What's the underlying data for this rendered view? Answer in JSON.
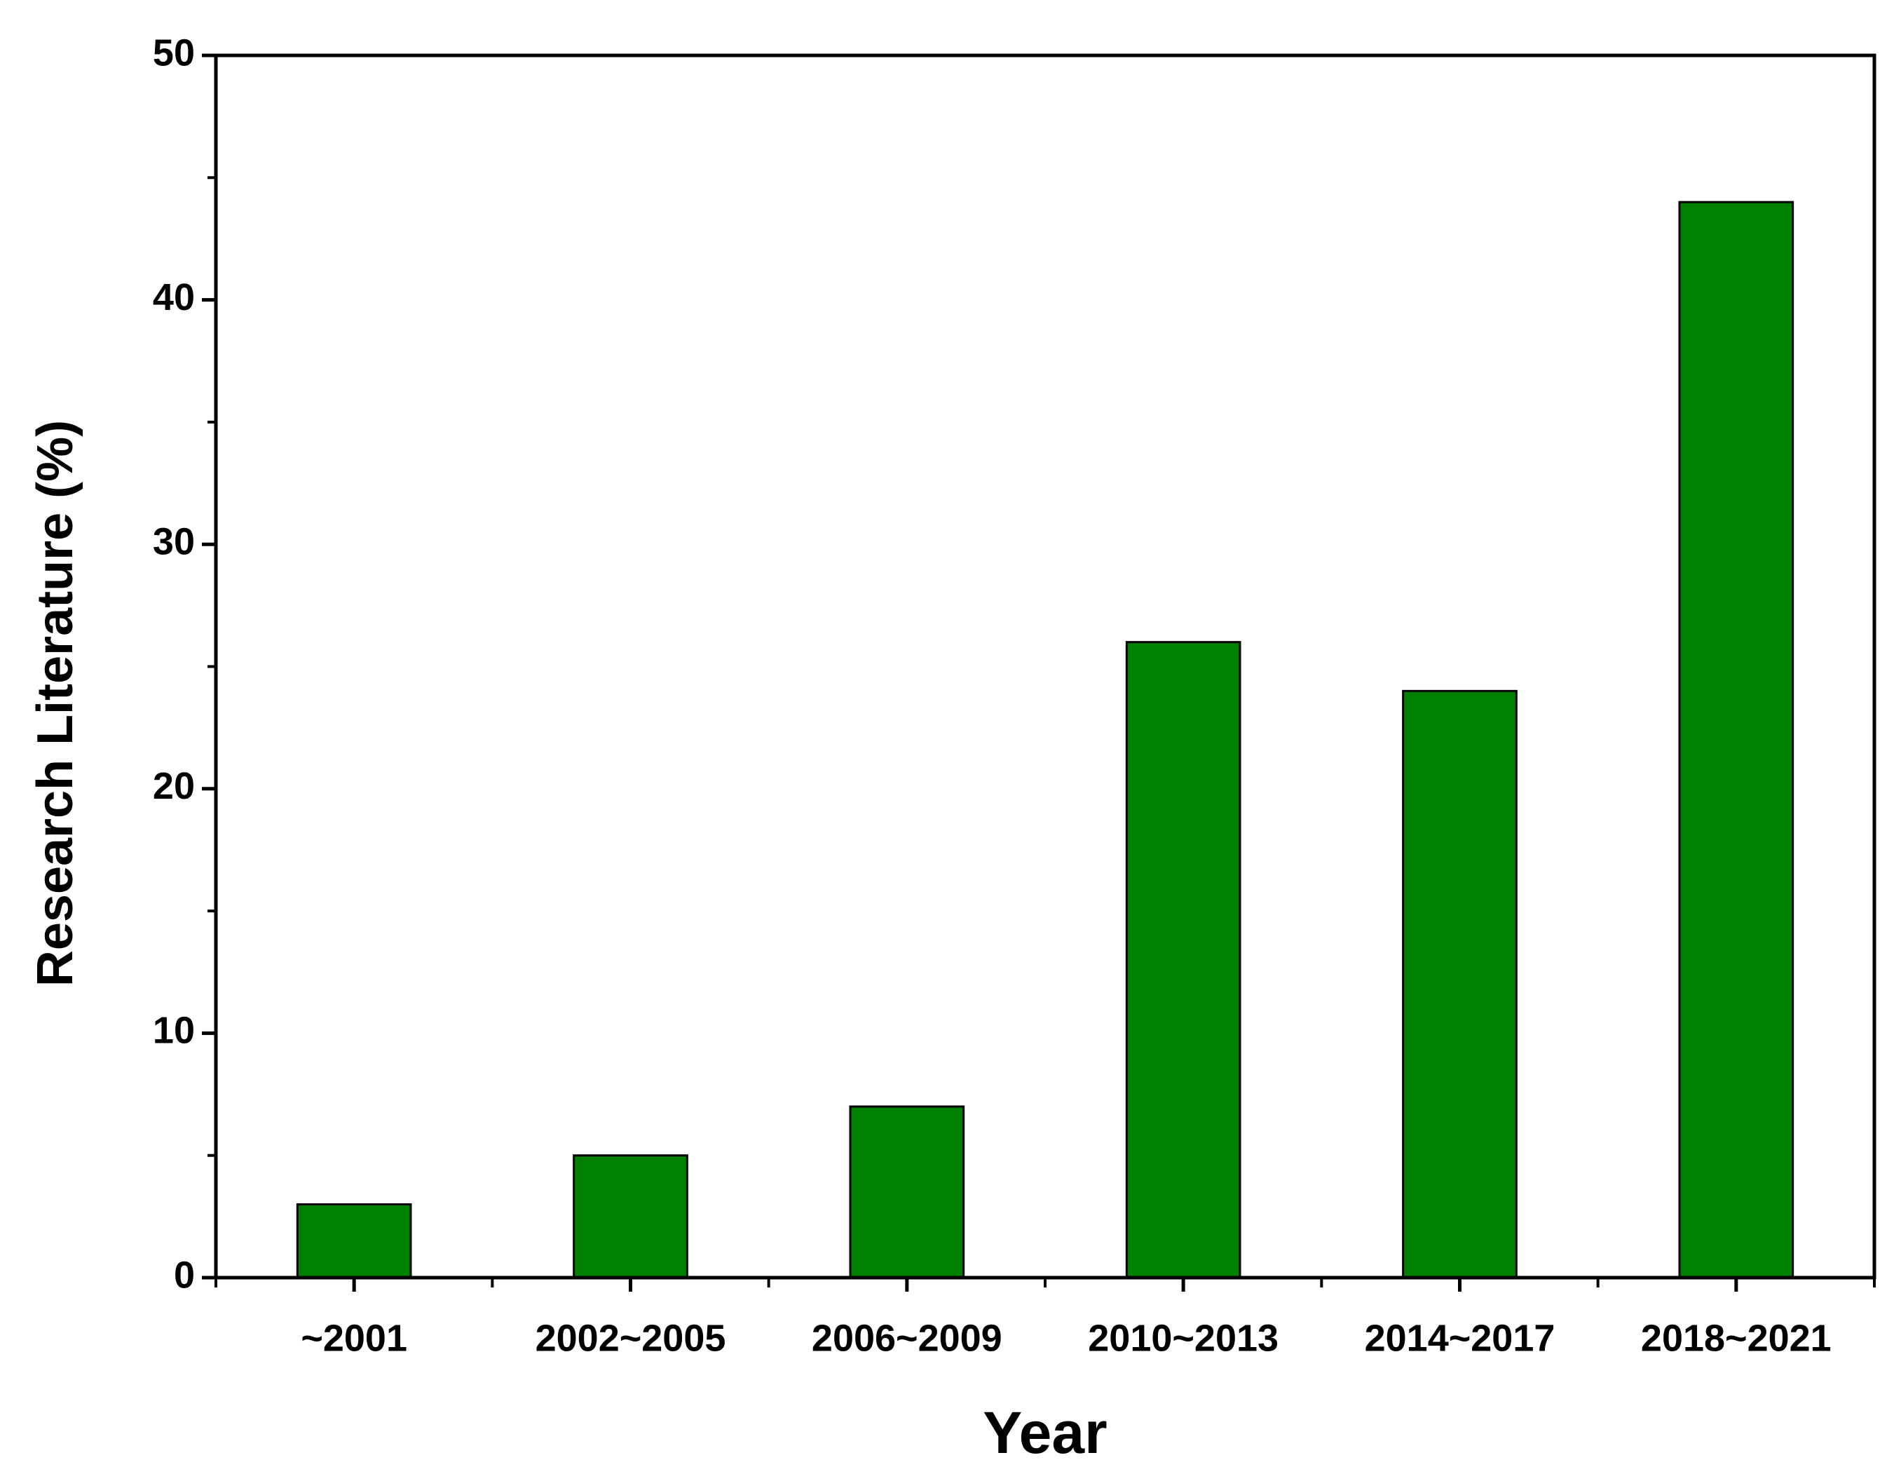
{
  "chart_data": {
    "type": "bar",
    "x_label": "Year",
    "y_label": "Research Literature (%)",
    "categories": [
      "~2001",
      "2002~2005",
      "2006~2009",
      "2010~2013",
      "2014~2017",
      "2018~2021"
    ],
    "values": [
      3,
      5,
      7,
      26,
      24,
      44
    ],
    "color": "#008000",
    "ylim": [
      0,
      50
    ],
    "yticks": [
      0,
      10,
      20,
      30,
      40,
      50
    ],
    "grid": false
  }
}
